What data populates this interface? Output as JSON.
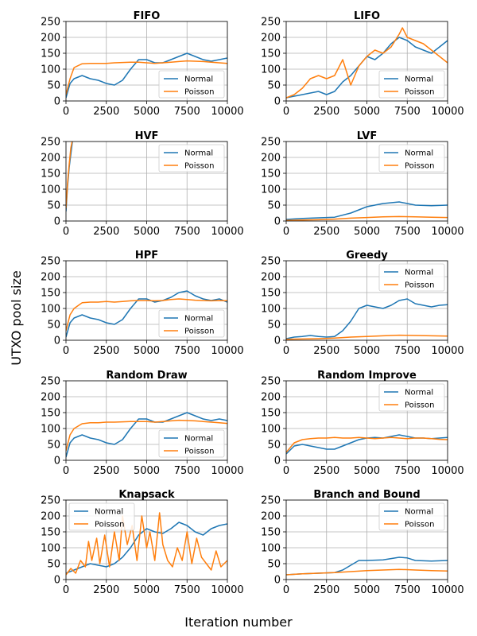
{
  "figure": {
    "ylabel": "UTXO pool size",
    "xlabel": "Iteration number"
  },
  "colors": {
    "normal": "#1f77b4",
    "poisson": "#ff7f0e",
    "grid": "#b0b0b0"
  },
  "chart_data": [
    {
      "type": "line",
      "title": "FIFO",
      "legend": "lower-right",
      "xlim": [
        0,
        10000
      ],
      "ylim": [
        0,
        250
      ],
      "xticks": [
        "0",
        "2500",
        "5000",
        "7500",
        "10000"
      ],
      "yticks": [
        "0",
        "50",
        "100",
        "150",
        "200",
        "250"
      ],
      "series": [
        {
          "name": "Normal",
          "x": [
            0,
            250,
            500,
            1000,
            1500,
            2000,
            2500,
            3000,
            3500,
            4000,
            4500,
            5000,
            5500,
            6000,
            6500,
            7000,
            7500,
            8000,
            8500,
            9000,
            9500,
            10000
          ],
          "values": [
            10,
            55,
            70,
            80,
            70,
            65,
            55,
            50,
            65,
            100,
            130,
            130,
            120,
            120,
            130,
            140,
            150,
            140,
            130,
            125,
            130,
            135
          ]
        },
        {
          "name": "Poisson",
          "x": [
            0,
            250,
            500,
            1000,
            1500,
            2000,
            2500,
            3000,
            3500,
            4000,
            4500,
            5000,
            5500,
            6000,
            6500,
            7000,
            7500,
            8000,
            8500,
            9000,
            9500,
            10000
          ],
          "values": [
            20,
            70,
            105,
            117,
            118,
            118,
            118,
            120,
            121,
            122,
            122,
            120,
            118,
            120,
            122,
            124,
            126,
            125,
            124,
            122,
            120,
            118
          ]
        }
      ]
    },
    {
      "type": "line",
      "title": "LIFO",
      "legend": "lower-right",
      "xlim": [
        0,
        10000
      ],
      "ylim": [
        0,
        250
      ],
      "xticks": [
        "0",
        "2500",
        "5000",
        "7500",
        "10000"
      ],
      "yticks": [
        "0",
        "50",
        "100",
        "150",
        "200",
        "250"
      ],
      "series": [
        {
          "name": "Normal",
          "x": [
            0,
            500,
            1000,
            1500,
            2000,
            2500,
            3000,
            3500,
            4000,
            4500,
            5000,
            5500,
            6000,
            6500,
            7000,
            7500,
            8000,
            8500,
            9000,
            9500,
            10000
          ],
          "values": [
            10,
            15,
            20,
            25,
            30,
            20,
            30,
            60,
            80,
            110,
            140,
            130,
            150,
            180,
            200,
            190,
            170,
            160,
            150,
            170,
            190
          ]
        },
        {
          "name": "Poisson",
          "x": [
            0,
            500,
            1000,
            1500,
            2000,
            2500,
            3000,
            3500,
            4000,
            4500,
            5000,
            5500,
            6000,
            6500,
            7000,
            7200,
            7500,
            8000,
            8500,
            9000,
            9500,
            10000
          ],
          "values": [
            10,
            20,
            40,
            70,
            80,
            70,
            80,
            130,
            50,
            110,
            140,
            160,
            150,
            170,
            210,
            230,
            200,
            190,
            180,
            160,
            140,
            120
          ]
        }
      ]
    },
    {
      "type": "line",
      "title": "HVF",
      "legend": "upper-right",
      "xlim": [
        0,
        10000
      ],
      "ylim": [
        0,
        250
      ],
      "xticks": [
        "0",
        "2500",
        "5000",
        "7500",
        "10000"
      ],
      "yticks": [
        "0",
        "50",
        "100",
        "150",
        "200",
        "250"
      ],
      "series": [
        {
          "name": "Normal",
          "x": [
            0,
            100,
            200,
            300,
            400
          ],
          "values": [
            30,
            110,
            170,
            210,
            250
          ]
        },
        {
          "name": "Poisson",
          "x": [
            0,
            100,
            200,
            300,
            380
          ],
          "values": [
            40,
            120,
            180,
            230,
            250
          ]
        }
      ]
    },
    {
      "type": "line",
      "title": "LVF",
      "legend": "upper-right",
      "xlim": [
        0,
        10000
      ],
      "ylim": [
        0,
        250
      ],
      "xticks": [
        "0",
        "2500",
        "5000",
        "7500",
        "10000"
      ],
      "yticks": [
        "0",
        "50",
        "100",
        "150",
        "200",
        "250"
      ],
      "series": [
        {
          "name": "Normal",
          "x": [
            0,
            1000,
            2000,
            3000,
            4000,
            5000,
            6000,
            7000,
            7500,
            8000,
            9000,
            10000
          ],
          "values": [
            5,
            8,
            10,
            12,
            25,
            45,
            55,
            60,
            55,
            50,
            48,
            50
          ]
        },
        {
          "name": "Poisson",
          "x": [
            0,
            1000,
            2000,
            3000,
            4000,
            5000,
            6000,
            7000,
            8000,
            9000,
            10000
          ],
          "values": [
            2,
            3,
            4,
            6,
            9,
            11,
            13,
            14,
            13,
            12,
            11
          ]
        }
      ]
    },
    {
      "type": "line",
      "title": "HPF",
      "legend": "lower-right",
      "xlim": [
        0,
        10000
      ],
      "ylim": [
        0,
        250
      ],
      "xticks": [
        "0",
        "2500",
        "5000",
        "7500",
        "10000"
      ],
      "yticks": [
        "0",
        "50",
        "100",
        "150",
        "200",
        "250"
      ],
      "series": [
        {
          "name": "Normal",
          "x": [
            0,
            250,
            500,
            1000,
            1500,
            2000,
            2500,
            3000,
            3500,
            4000,
            4500,
            5000,
            5500,
            6000,
            6500,
            7000,
            7500,
            8000,
            8500,
            9000,
            9500,
            10000
          ],
          "values": [
            10,
            55,
            70,
            80,
            70,
            65,
            55,
            50,
            65,
            100,
            130,
            130,
            120,
            125,
            135,
            150,
            155,
            140,
            130,
            125,
            130,
            120
          ]
        },
        {
          "name": "Poisson",
          "x": [
            0,
            250,
            500,
            1000,
            1500,
            2000,
            2500,
            3000,
            3500,
            4000,
            4500,
            5000,
            5500,
            6000,
            6500,
            7000,
            7500,
            8000,
            8500,
            9000,
            9500,
            10000
          ],
          "values": [
            30,
            80,
            100,
            118,
            120,
            120,
            122,
            120,
            122,
            124,
            125,
            125,
            124,
            125,
            128,
            130,
            128,
            126,
            125,
            124,
            125,
            124
          ]
        }
      ]
    },
    {
      "type": "line",
      "title": "Greedy",
      "legend": "upper-right",
      "xlim": [
        0,
        10000
      ],
      "ylim": [
        0,
        250
      ],
      "xticks": [
        "0",
        "2500",
        "5000",
        "7500",
        "10000"
      ],
      "yticks": [
        "0",
        "50",
        "100",
        "150",
        "200",
        "250"
      ],
      "series": [
        {
          "name": "Normal",
          "x": [
            0,
            500,
            1000,
            1500,
            2000,
            2500,
            3000,
            3500,
            4000,
            4500,
            5000,
            5500,
            6000,
            6500,
            7000,
            7500,
            8000,
            8500,
            9000,
            9500,
            10000
          ],
          "values": [
            5,
            10,
            12,
            15,
            12,
            10,
            12,
            30,
            60,
            100,
            110,
            105,
            100,
            110,
            125,
            130,
            115,
            110,
            105,
            110,
            112
          ]
        },
        {
          "name": "Poisson",
          "x": [
            0,
            1000,
            2000,
            3000,
            4000,
            5000,
            6000,
            7000,
            8000,
            9000,
            10000
          ],
          "values": [
            3,
            4,
            5,
            7,
            10,
            12,
            14,
            16,
            15,
            14,
            13
          ]
        }
      ]
    },
    {
      "type": "line",
      "title": "Random Draw",
      "legend": "lower-right",
      "xlim": [
        0,
        10000
      ],
      "ylim": [
        0,
        250
      ],
      "xticks": [
        "0",
        "2500",
        "5000",
        "7500",
        "10000"
      ],
      "yticks": [
        "0",
        "50",
        "100",
        "150",
        "200",
        "250"
      ],
      "series": [
        {
          "name": "Normal",
          "x": [
            0,
            250,
            500,
            1000,
            1500,
            2000,
            2500,
            3000,
            3500,
            4000,
            4500,
            5000,
            5500,
            6000,
            6500,
            7000,
            7500,
            8000,
            8500,
            9000,
            9500,
            10000
          ],
          "values": [
            10,
            55,
            70,
            80,
            70,
            65,
            55,
            50,
            65,
            100,
            130,
            130,
            120,
            120,
            130,
            140,
            150,
            140,
            130,
            125,
            130,
            125
          ]
        },
        {
          "name": "Poisson",
          "x": [
            0,
            250,
            500,
            1000,
            1500,
            2000,
            2500,
            3000,
            3500,
            4000,
            4500,
            5000,
            5500,
            6000,
            6500,
            7000,
            7500,
            8000,
            8500,
            9000,
            9500,
            10000
          ],
          "values": [
            30,
            80,
            100,
            115,
            118,
            118,
            120,
            120,
            121,
            122,
            122,
            122,
            120,
            122,
            124,
            126,
            125,
            124,
            122,
            120,
            118,
            116
          ]
        }
      ]
    },
    {
      "type": "line",
      "title": "Random Improve",
      "legend": "upper-right",
      "xlim": [
        0,
        10000
      ],
      "ylim": [
        0,
        250
      ],
      "xticks": [
        "0",
        "2500",
        "5000",
        "7500",
        "10000"
      ],
      "yticks": [
        "0",
        "50",
        "100",
        "150",
        "200",
        "250"
      ],
      "series": [
        {
          "name": "Normal",
          "x": [
            0,
            500,
            1000,
            1500,
            2000,
            2500,
            3000,
            3500,
            4000,
            4500,
            5000,
            5500,
            6000,
            6500,
            7000,
            7500,
            8000,
            8500,
            9000,
            9500,
            10000
          ],
          "values": [
            20,
            45,
            50,
            45,
            40,
            35,
            35,
            45,
            55,
            65,
            70,
            72,
            70,
            75,
            80,
            75,
            70,
            70,
            68,
            70,
            72
          ]
        },
        {
          "name": "Poisson",
          "x": [
            0,
            500,
            1000,
            1500,
            2000,
            2500,
            3000,
            3500,
            4000,
            4500,
            5000,
            5500,
            6000,
            6500,
            7000,
            7500,
            8000,
            8500,
            9000,
            9500,
            10000
          ],
          "values": [
            25,
            55,
            65,
            68,
            70,
            70,
            72,
            70,
            70,
            72,
            70,
            68,
            70,
            72,
            70,
            68,
            70,
            70,
            68,
            66,
            65
          ]
        }
      ]
    },
    {
      "type": "line",
      "title": "Knapsack",
      "legend": "upper-left",
      "xlim": [
        0,
        10000
      ],
      "ylim": [
        0,
        250
      ],
      "xticks": [
        "0",
        "2500",
        "5000",
        "7500",
        "10000"
      ],
      "yticks": [
        "0",
        "50",
        "100",
        "150",
        "200",
        "250"
      ],
      "series": [
        {
          "name": "Normal",
          "x": [
            0,
            500,
            1000,
            1500,
            2000,
            2500,
            3000,
            3500,
            4000,
            4500,
            5000,
            5500,
            6000,
            6500,
            7000,
            7500,
            8000,
            8500,
            9000,
            9500,
            10000
          ],
          "values": [
            20,
            30,
            40,
            50,
            45,
            40,
            50,
            70,
            100,
            140,
            160,
            150,
            145,
            160,
            180,
            170,
            150,
            140,
            160,
            170,
            175
          ]
        },
        {
          "name": "Poisson",
          "x": [
            0,
            300,
            600,
            900,
            1200,
            1400,
            1600,
            1900,
            2100,
            2400,
            2700,
            3000,
            3300,
            3500,
            3800,
            4100,
            4400,
            4700,
            5000,
            5200,
            5500,
            5800,
            6000,
            6300,
            6600,
            6900,
            7200,
            7500,
            7800,
            8100,
            8400,
            8700,
            9000,
            9300,
            9600,
            10000
          ],
          "values": [
            15,
            35,
            20,
            60,
            40,
            120,
            60,
            130,
            50,
            140,
            40,
            150,
            60,
            200,
            110,
            170,
            60,
            200,
            100,
            150,
            60,
            210,
            110,
            60,
            40,
            100,
            60,
            150,
            50,
            130,
            70,
            50,
            30,
            90,
            40,
            60
          ]
        }
      ]
    },
    {
      "type": "line",
      "title": "Branch and Bound",
      "legend": "upper-right",
      "xlim": [
        0,
        10000
      ],
      "ylim": [
        0,
        250
      ],
      "xticks": [
        "0",
        "2500",
        "5000",
        "7500",
        "10000"
      ],
      "yticks": [
        "0",
        "50",
        "100",
        "150",
        "200",
        "250"
      ],
      "series": [
        {
          "name": "Normal",
          "x": [
            0,
            1000,
            2000,
            3000,
            3500,
            4000,
            4500,
            5000,
            6000,
            7000,
            7500,
            8000,
            9000,
            10000
          ],
          "values": [
            15,
            18,
            20,
            22,
            30,
            45,
            60,
            60,
            62,
            70,
            68,
            60,
            58,
            60
          ]
        },
        {
          "name": "Poisson",
          "x": [
            0,
            1000,
            2000,
            3000,
            4000,
            5000,
            6000,
            7000,
            8000,
            9000,
            10000
          ],
          "values": [
            15,
            18,
            20,
            22,
            25,
            28,
            30,
            32,
            30,
            28,
            27
          ]
        }
      ]
    }
  ]
}
